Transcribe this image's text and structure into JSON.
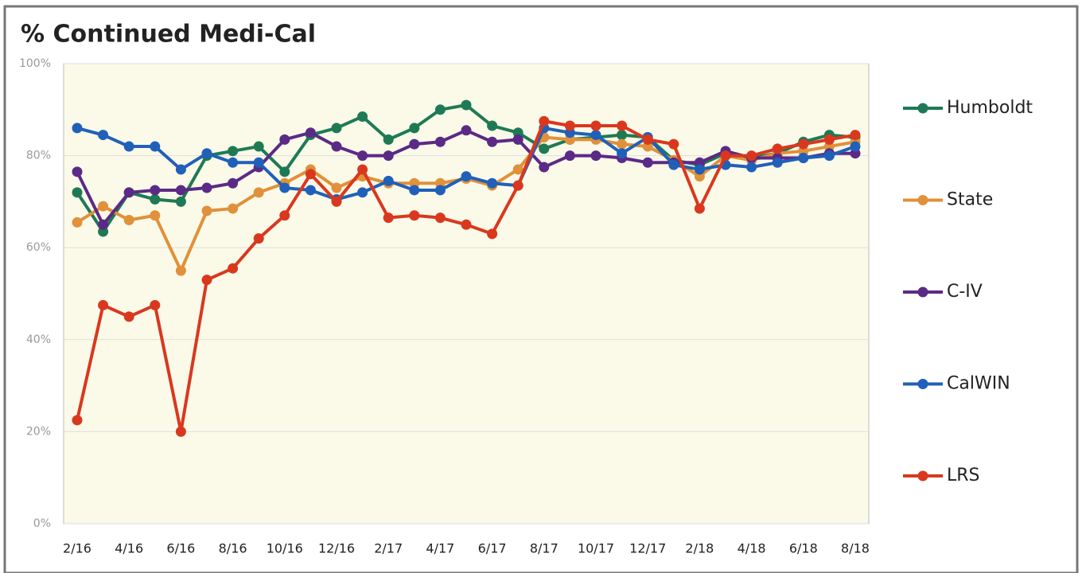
{
  "chart_data": {
    "type": "line",
    "title": "% Continued Medi-Cal",
    "categories": [
      "2/16",
      null,
      "4/16",
      null,
      "6/16",
      null,
      "8/16",
      null,
      "10/16",
      null,
      "12/16",
      null,
      "2/17",
      null,
      "4/17",
      null,
      "6/17",
      null,
      "8/17",
      null,
      "10/17",
      null,
      "12/17",
      null,
      "2/18",
      null,
      "4/18",
      null,
      "6/18",
      null,
      "8/18"
    ],
    "series": [
      {
        "name": "Humboldt",
        "color": "#1e7a54",
        "values": [
          72,
          63.5,
          72,
          70.5,
          70,
          80,
          81,
          82,
          76.5,
          84.5,
          86,
          88.5,
          83.5,
          86,
          90,
          91,
          86.5,
          85,
          81.5,
          83.5,
          84,
          84.5,
          84,
          79,
          78,
          80.5,
          79.5,
          80.5,
          83,
          84.5,
          84
        ]
      },
      {
        "name": "State",
        "color": "#e0913a",
        "values": [
          65.5,
          69,
          66,
          67,
          55,
          68,
          68.5,
          72,
          74,
          77,
          73,
          75.5,
          74,
          74,
          74,
          75,
          73.5,
          77,
          84,
          83.5,
          83.5,
          82.5,
          82,
          79,
          75.5,
          80,
          79,
          80.5,
          81,
          82,
          83
        ]
      },
      {
        "name": "C-IV",
        "color": "#5b2a86",
        "values": [
          76.5,
          65,
          72,
          72.5,
          72.5,
          73,
          74,
          77.5,
          83.5,
          85,
          82,
          80,
          80,
          82.5,
          83,
          85.5,
          83,
          83.5,
          77.5,
          80,
          80,
          79.5,
          78.5,
          78.5,
          78.5,
          81,
          79.5,
          79.5,
          79.5,
          80.5,
          80.5
        ]
      },
      {
        "name": "CalWIN",
        "color": "#2060b8",
        "values": [
          86,
          84.5,
          82,
          82,
          77,
          80.5,
          78.5,
          78.5,
          73,
          72.5,
          70.5,
          72,
          74.5,
          72.5,
          72.5,
          75.5,
          74,
          73.5,
          86,
          85,
          84.5,
          80.5,
          84,
          78,
          77,
          78,
          77.5,
          78.5,
          79.5,
          80,
          82
        ]
      },
      {
        "name": "LRS",
        "color": "#d9381e",
        "values": [
          22.5,
          47.5,
          45,
          47.5,
          20,
          53,
          55.5,
          62,
          67,
          76,
          70,
          77,
          66.5,
          67,
          66.5,
          65,
          63,
          73.5,
          87.5,
          86.5,
          86.5,
          86.5,
          83.5,
          82.5,
          68.5,
          80,
          80,
          81.5,
          82.5,
          83.5,
          84.5
        ]
      }
    ],
    "ylim": [
      0,
      100
    ],
    "yticks": [
      {
        "value": 0,
        "label": "0%"
      },
      {
        "value": 20,
        "label": "20%"
      },
      {
        "value": 40,
        "label": "40%"
      },
      {
        "value": 60,
        "label": "60%"
      },
      {
        "value": 80,
        "label": "80%"
      },
      {
        "value": 100,
        "label": "100%"
      }
    ],
    "grid": true,
    "legend": "right"
  }
}
